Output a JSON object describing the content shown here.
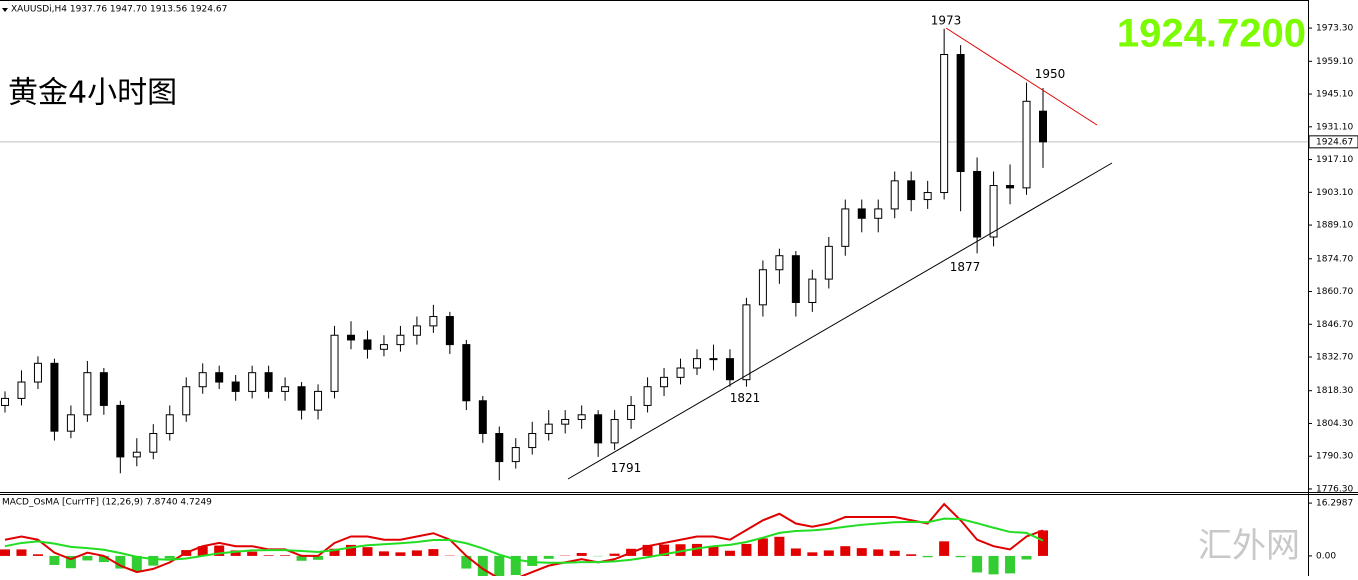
{
  "chart_data": [
    {
      "type": "candlestick",
      "title": "黄金4小时图",
      "header": "XAUUSDi,H4  1937.76 1947.70 1913.56 1924.67",
      "price_display": "1924.7200",
      "price_color": "#7cfc00",
      "current_price": 1924.67,
      "open": [
        1812,
        1815,
        1822,
        1830,
        1801,
        1808,
        1826,
        1812,
        1790,
        1792,
        1800,
        1808,
        1820,
        1826,
        1822,
        1818,
        1826,
        1818,
        1820,
        1810,
        1818,
        1842,
        1840,
        1836,
        1838,
        1842,
        1846,
        1850,
        1838,
        1814,
        1800,
        1788,
        1794,
        1800,
        1804,
        1806,
        1808,
        1796,
        1806,
        1812,
        1820,
        1824,
        1828,
        1832,
        1832,
        1823,
        1855,
        1870,
        1876,
        1856,
        1866,
        1880,
        1896,
        1892,
        1896,
        1908,
        1900,
        1903,
        1962,
        1912,
        1884,
        1906,
        1905,
        1937.76
      ],
      "high": [
        1818,
        1827,
        1833,
        1832,
        1812,
        1831,
        1828,
        1814,
        1798,
        1804,
        1812,
        1824,
        1830,
        1829,
        1825,
        1829,
        1829,
        1824,
        1822,
        1821,
        1846,
        1848,
        1844,
        1842,
        1846,
        1850,
        1855,
        1852,
        1840,
        1816,
        1803,
        1798,
        1805,
        1810,
        1810,
        1812,
        1810,
        1810,
        1816,
        1824,
        1828,
        1832,
        1836,
        1838,
        1836,
        1858,
        1874,
        1879,
        1878,
        1870,
        1884,
        1900,
        1900,
        1900,
        1912,
        1912,
        1908,
        1973,
        1966,
        1918,
        1912,
        1915,
        1950,
        1947.7
      ],
      "low": [
        1809,
        1812,
        1819,
        1797,
        1798,
        1805,
        1808,
        1783,
        1786,
        1789,
        1797,
        1805,
        1817,
        1819,
        1814,
        1815,
        1815,
        1814,
        1806,
        1806,
        1815,
        1836,
        1832,
        1833,
        1835,
        1838,
        1843,
        1834,
        1810,
        1796,
        1780,
        1785,
        1791,
        1797,
        1800,
        1802,
        1790,
        1793,
        1802,
        1809,
        1816,
        1821,
        1825,
        1827,
        1820,
        1820,
        1850,
        1864,
        1850,
        1852,
        1862,
        1876,
        1886,
        1886,
        1892,
        1895,
        1896,
        1900,
        1895,
        1877,
        1880,
        1898,
        1902,
        1913.56
      ],
      "close": [
        1815,
        1822,
        1830,
        1801,
        1808,
        1826,
        1812,
        1790,
        1792,
        1800,
        1808,
        1820,
        1826,
        1822,
        1818,
        1826,
        1818,
        1820,
        1810,
        1818,
        1842,
        1840,
        1836,
        1838,
        1842,
        1846,
        1850,
        1838,
        1814,
        1800,
        1788,
        1794,
        1800,
        1804,
        1806,
        1808,
        1796,
        1806,
        1812,
        1820,
        1824,
        1828,
        1832,
        1832,
        1823,
        1855,
        1870,
        1876,
        1856,
        1866,
        1880,
        1896,
        1892,
        1896,
        1908,
        1900,
        1903,
        1962,
        1912,
        1884,
        1906,
        1905,
        1942,
        1924.67
      ],
      "annotations": [
        1973,
        1950,
        1877,
        1821,
        1791
      ],
      "ylim": [
        1775,
        1985.3
      ],
      "yticks": [
        {
          "value": 1973.3,
          "label": "1973.30"
        },
        {
          "value": 1959.1,
          "label": "1959.10"
        },
        {
          "value": 1945.1,
          "label": "1945.10"
        },
        {
          "value": 1931.1,
          "label": "1931.10"
        },
        {
          "value": 1917.1,
          "label": "1917.10"
        },
        {
          "value": 1903.1,
          "label": "1903.10"
        },
        {
          "value": 1889.1,
          "label": "1889.10"
        },
        {
          "value": 1874.7,
          "label": "1874.70"
        },
        {
          "value": 1860.7,
          "label": "1860.70"
        },
        {
          "value": 1846.7,
          "label": "1846.70"
        },
        {
          "value": 1832.7,
          "label": "1832.70"
        },
        {
          "value": 1818.3,
          "label": "1818.30"
        },
        {
          "value": 1804.3,
          "label": "1804.30"
        },
        {
          "value": 1790.3,
          "label": "1790.30"
        },
        {
          "value": 1776.3,
          "label": "1776.30"
        }
      ]
    },
    {
      "type": "macd",
      "title": "MACD_OsMA [CurrTF] (12,26,9) 7.8740 4.7249",
      "watermark": "汇外网",
      "histogram": [
        2,
        2,
        0.5,
        -2.8,
        -3.8,
        -1.4,
        -1.9,
        -3.9,
        -4.7,
        -3,
        -0.8,
        1.8,
        3,
        3.2,
        1.7,
        1.3,
        0.2,
        0.2,
        -1.5,
        -1.2,
        2.2,
        3.4,
        2.7,
        1.4,
        1.1,
        1.7,
        2.1,
        0.1,
        -3.9,
        -6.3,
        -7.4,
        -5.9,
        -3.1,
        -0.9,
        0.1,
        0.9,
        -0.1,
        0.7,
        2.2,
        3.4,
        3.5,
        3.6,
        3.7,
        3,
        1.6,
        3.7,
        5.4,
        5.9,
        2.3,
        1.1,
        1.7,
        3,
        2.4,
        2,
        1.6,
        0.5,
        -0.4,
        4.5,
        -0.4,
        -5.1,
        -5.7,
        -5.4,
        -1.1,
        7.874
      ],
      "series": [
        {
          "color": "#e00000",
          "values": [
            5,
            6,
            5,
            1,
            -1,
            1,
            0,
            -3,
            -5,
            -4,
            -2,
            1,
            3,
            4,
            3,
            3,
            2,
            2,
            0,
            0,
            4,
            6,
            6,
            5,
            5,
            6,
            7,
            5,
            0,
            -4,
            -7,
            -7,
            -5,
            -3,
            -2,
            -1,
            -2,
            -1,
            1,
            3,
            4,
            5,
            6,
            6,
            5,
            8,
            11,
            13,
            10,
            9,
            10,
            12,
            12,
            12,
            12,
            11,
            10,
            16,
            11,
            5,
            3,
            2,
            6,
            7.874
          ]
        },
        {
          "color": "#22dd22",
          "values": [
            3,
            4,
            4.5,
            3.8,
            2.8,
            2.4,
            1.9,
            0.9,
            -0.3,
            -1,
            -1.2,
            -0.8,
            0,
            0.8,
            1.3,
            1.7,
            1.8,
            1.8,
            1.5,
            1.2,
            1.8,
            2.6,
            3.3,
            3.6,
            3.9,
            4.3,
            4.9,
            4.9,
            3.9,
            2.3,
            0.4,
            -1.1,
            -1.9,
            -2.1,
            -2.1,
            -1.9,
            -1.9,
            -1.7,
            -1.2,
            -0.4,
            0.5,
            1.4,
            2.3,
            3,
            3.4,
            4.3,
            5.6,
            7.1,
            7.7,
            7.9,
            8.3,
            9,
            9.6,
            10,
            10.4,
            10.5,
            10.4,
            11.5,
            11.4,
            10.1,
            8.7,
            7.4,
            7.1,
            4.7249
          ]
        }
      ],
      "pos_color": "#e00000",
      "neg_color": "#33cc33",
      "ylim": [
        -6.2,
        18.8
      ],
      "yticks": [
        16.2987,
        {
          "value": 0,
          "label": "0.00"
        }
      ]
    }
  ]
}
